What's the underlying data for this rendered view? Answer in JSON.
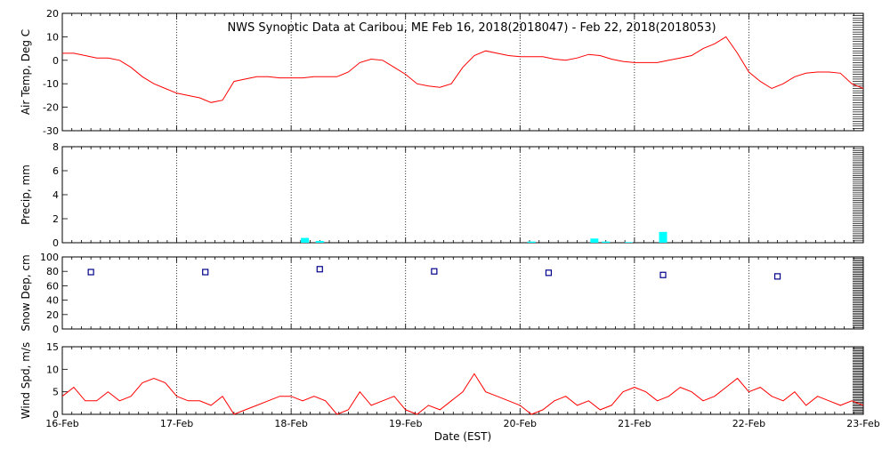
{
  "title": "NWS Synoptic Data at Caribou, ME    Feb 16, 2018(2018047) - Feb 22, 2018(2018053)",
  "xlabel": "Date (EST)",
  "colors": {
    "line": "#ff0000",
    "precip": "#00ffff",
    "snow": "#00008b",
    "frame": "#000000"
  },
  "chart_data": [
    {
      "type": "line",
      "name": "air-temp",
      "ylabel": "Air Temp, Deg C",
      "ylim": [
        -30,
        20
      ],
      "yticks": [
        -30,
        -20,
        -10,
        0,
        10,
        20
      ],
      "x_unit": "days since 16-Feb 00:00 EST",
      "x": [
        0,
        0.1,
        0.2,
        0.3,
        0.4,
        0.5,
        0.6,
        0.7,
        0.8,
        0.9,
        1.0,
        1.1,
        1.2,
        1.3,
        1.4,
        1.5,
        1.6,
        1.7,
        1.8,
        1.9,
        2.0,
        2.1,
        2.2,
        2.3,
        2.4,
        2.5,
        2.6,
        2.7,
        2.8,
        2.9,
        3.0,
        3.1,
        3.2,
        3.3,
        3.4,
        3.5,
        3.6,
        3.7,
        3.8,
        3.9,
        4.0,
        4.1,
        4.2,
        4.3,
        4.4,
        4.5,
        4.6,
        4.7,
        4.8,
        4.9,
        5.0,
        5.1,
        5.2,
        5.3,
        5.4,
        5.5,
        5.6,
        5.7,
        5.8,
        5.9,
        6.0,
        6.1,
        6.2,
        6.3,
        6.4,
        6.5,
        6.6,
        6.7,
        6.8,
        6.9,
        7.0
      ],
      "values": [
        3,
        3,
        2,
        1,
        1,
        0,
        -3,
        -7,
        -10,
        -12,
        -14,
        -15,
        -16,
        -18,
        -17,
        -9,
        -8,
        -7,
        -7,
        -7.5,
        -7.5,
        -7.5,
        -7,
        -7,
        -7,
        -5,
        -1,
        0.5,
        0,
        -3,
        -6,
        -10,
        -11,
        -11.5,
        -10,
        -3,
        2,
        4,
        3,
        2,
        1.5,
        1.5,
        1.5,
        0.5,
        0,
        1,
        2.5,
        2,
        0.5,
        -0.5,
        -1,
        -1,
        -1,
        0,
        1,
        2,
        5,
        7,
        10,
        3,
        -5,
        -9,
        -12,
        -10,
        -7,
        -5.5,
        -5,
        -5,
        -5.5,
        -10,
        -12
      ]
    },
    {
      "type": "bar",
      "name": "precip",
      "ylabel": "Precip, mm",
      "ylim": [
        0,
        8
      ],
      "yticks": [
        0,
        2,
        4,
        6,
        8
      ],
      "x_unit": "days since 16-Feb 00:00 EST",
      "x": [
        2.12,
        2.25,
        4.1,
        4.65,
        4.75,
        4.95,
        5.25
      ],
      "values": [
        0.4,
        0.15,
        0.1,
        0.35,
        0.1,
        0.05,
        0.9
      ]
    },
    {
      "type": "scatter",
      "name": "snow-depth",
      "ylabel": "Snow Dep, cm",
      "ylim": [
        0,
        100
      ],
      "yticks": [
        0,
        20,
        40,
        60,
        80,
        100
      ],
      "x_unit": "days since 16-Feb 00:00 EST",
      "x": [
        0.25,
        1.25,
        2.25,
        3.25,
        4.25,
        5.25,
        6.25
      ],
      "values": [
        79,
        79,
        83,
        80,
        78,
        75,
        73
      ]
    },
    {
      "type": "line",
      "name": "wind-speed",
      "ylabel": "Wind Spd, m/s",
      "ylim": [
        0,
        15
      ],
      "yticks": [
        0,
        5,
        10,
        15
      ],
      "x_unit": "days since 16-Feb 00:00 EST",
      "x": [
        0,
        0.1,
        0.2,
        0.3,
        0.4,
        0.5,
        0.6,
        0.7,
        0.8,
        0.9,
        1.0,
        1.1,
        1.2,
        1.3,
        1.4,
        1.5,
        1.6,
        1.7,
        1.8,
        1.9,
        2.0,
        2.1,
        2.2,
        2.3,
        2.4,
        2.5,
        2.6,
        2.7,
        2.8,
        2.9,
        3.0,
        3.1,
        3.2,
        3.3,
        3.4,
        3.5,
        3.6,
        3.7,
        3.8,
        3.9,
        4.0,
        4.1,
        4.2,
        4.3,
        4.4,
        4.5,
        4.6,
        4.7,
        4.8,
        4.9,
        5.0,
        5.1,
        5.2,
        5.3,
        5.4,
        5.5,
        5.6,
        5.7,
        5.8,
        5.9,
        6.0,
        6.1,
        6.2,
        6.3,
        6.4,
        6.5,
        6.6,
        6.7,
        6.8,
        6.9,
        7.0
      ],
      "values": [
        4,
        6,
        3,
        3,
        5,
        3,
        4,
        7,
        8,
        7,
        4,
        3,
        3,
        2,
        4,
        0,
        1,
        2,
        3,
        4,
        4,
        3,
        4,
        3,
        0,
        1,
        5,
        2,
        3,
        4,
        1,
        0,
        2,
        1,
        3,
        5,
        9,
        5,
        4,
        3,
        2,
        0,
        1,
        3,
        4,
        2,
        3,
        1,
        2,
        5,
        6,
        5,
        3,
        4,
        6,
        5,
        3,
        4,
        6,
        8,
        5,
        6,
        4,
        3,
        5,
        2,
        4,
        3,
        2,
        3,
        2
      ]
    }
  ],
  "xaxis": {
    "range": [
      0,
      7
    ],
    "ticks": [
      0,
      1,
      2,
      3,
      4,
      5,
      6,
      7
    ],
    "tick_labels": [
      "16-Feb",
      "17-Feb",
      "18-Feb",
      "19-Feb",
      "20-Feb",
      "21-Feb",
      "22-Feb",
      "23-Feb"
    ],
    "grid": "dotted vertical at each day"
  }
}
